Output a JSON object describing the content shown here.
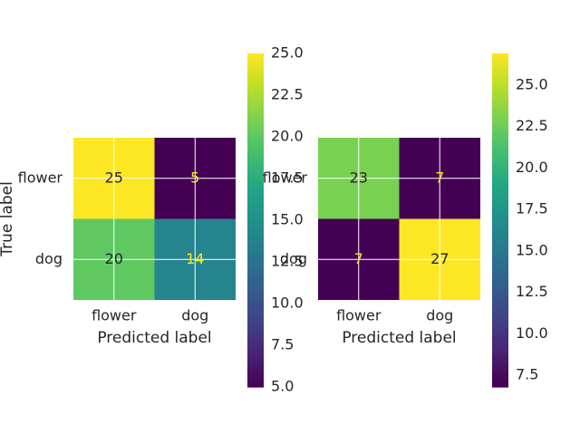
{
  "chart_data": [
    {
      "type": "heatmap",
      "title": "",
      "ylabel": "True label",
      "xlabel": "Predicted label",
      "x_categories": [
        "flower",
        "dog"
      ],
      "y_categories": [
        "flower",
        "dog"
      ],
      "values": [
        [
          25,
          5
        ],
        [
          20,
          14
        ]
      ],
      "colormap": "viridis",
      "vmin": 5,
      "vmax": 25,
      "grid": true,
      "colorbar": {
        "ticks": [
          "5.0",
          "7.5",
          "10.0",
          "12.5",
          "15.0",
          "17.5",
          "20.0",
          "22.5",
          "25.0"
        ]
      }
    },
    {
      "type": "heatmap",
      "title": "",
      "xlabel": "Predicted label",
      "x_categories": [
        "flower",
        "dog"
      ],
      "y_categories": [
        "flower",
        "dog"
      ],
      "values": [
        [
          23,
          7
        ],
        [
          7,
          27
        ]
      ],
      "colormap": "viridis",
      "vmin": 7,
      "vmax": 27,
      "grid": true,
      "colorbar": {
        "ticks": [
          "7.5",
          "10.0",
          "12.5",
          "15.0",
          "17.5",
          "20.0",
          "22.5",
          "25.0"
        ]
      }
    }
  ]
}
